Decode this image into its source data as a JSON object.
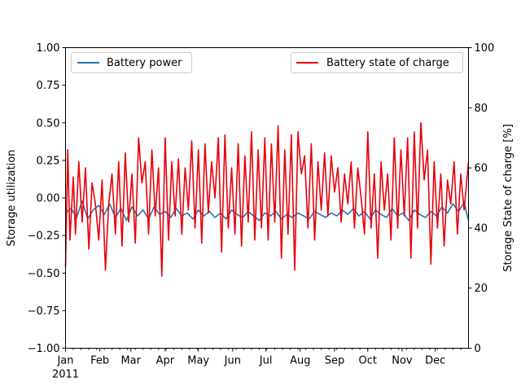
{
  "chart_data": {
    "type": "line",
    "x_axis": {
      "tick_labels": [
        "Jan",
        "Feb",
        "Mar",
        "Apr",
        "May",
        "Jun",
        "Jul",
        "Aug",
        "Sep",
        "Oct",
        "Nov",
        "Dec"
      ],
      "year_label": "2011",
      "range": [
        "2011-01-01",
        "2011-12-31"
      ]
    },
    "y_axis_left": {
      "label": "Storage utilization",
      "ylim": [
        -1.0,
        1.0
      ],
      "ticks": [
        "−1.00",
        "−0.75",
        "−0.50",
        "−0.25",
        "0.00",
        "0.25",
        "0.50",
        "0.75",
        "1.00"
      ]
    },
    "y_axis_right": {
      "label": "Storage State of charge [%]",
      "ylim": [
        0,
        100
      ],
      "ticks": [
        "0",
        "20",
        "40",
        "60",
        "80",
        "100"
      ]
    },
    "grid": false,
    "legend_left": {
      "position": "upper-left",
      "entry": "Battery power",
      "color": "#1f77b4"
    },
    "legend_right": {
      "position": "upper-right",
      "entry": "Battery state of charge",
      "color": "#e8000b"
    },
    "series": [
      {
        "name": "Battery power",
        "axis": "left",
        "color": "#1f77b4",
        "x": [
          "2011-01-01",
          "2011-01-06",
          "2011-01-11",
          "2011-01-16",
          "2011-01-21",
          "2011-01-26",
          "2011-01-31",
          "2011-02-05",
          "2011-02-10",
          "2011-02-15",
          "2011-02-20",
          "2011-02-25",
          "2011-03-02",
          "2011-03-07",
          "2011-03-12",
          "2011-03-17",
          "2011-03-22",
          "2011-03-27",
          "2011-04-01",
          "2011-04-06",
          "2011-04-11",
          "2011-04-16",
          "2011-04-21",
          "2011-04-26",
          "2011-05-01",
          "2011-05-06",
          "2011-05-11",
          "2011-05-16",
          "2011-05-21",
          "2011-05-26",
          "2011-05-31",
          "2011-06-05",
          "2011-06-10",
          "2011-06-15",
          "2011-06-20",
          "2011-06-25",
          "2011-06-30",
          "2011-07-05",
          "2011-07-10",
          "2011-07-15",
          "2011-07-20",
          "2011-07-25",
          "2011-07-30",
          "2011-08-04",
          "2011-08-09",
          "2011-08-14",
          "2011-08-19",
          "2011-08-24",
          "2011-08-29",
          "2011-09-03",
          "2011-09-08",
          "2011-09-13",
          "2011-09-18",
          "2011-09-23",
          "2011-09-28",
          "2011-10-03",
          "2011-10-08",
          "2011-10-13",
          "2011-10-18",
          "2011-10-23",
          "2011-10-28",
          "2011-11-02",
          "2011-11-07",
          "2011-11-12",
          "2011-11-17",
          "2011-11-22",
          "2011-11-27",
          "2011-12-02",
          "2011-12-07",
          "2011-12-12",
          "2011-12-17",
          "2011-12-22",
          "2011-12-27",
          "2011-12-31"
        ],
        "values": [
          -0.1,
          -0.07,
          -0.13,
          -0.02,
          -0.14,
          -0.08,
          -0.05,
          -0.11,
          -0.04,
          -0.13,
          -0.07,
          -0.15,
          -0.06,
          -0.12,
          -0.08,
          -0.14,
          -0.06,
          -0.11,
          -0.09,
          -0.13,
          -0.07,
          -0.12,
          -0.1,
          -0.14,
          -0.08,
          -0.12,
          -0.09,
          -0.13,
          -0.1,
          -0.14,
          -0.08,
          -0.11,
          -0.13,
          -0.09,
          -0.12,
          -0.15,
          -0.1,
          -0.12,
          -0.09,
          -0.14,
          -0.11,
          -0.13,
          -0.1,
          -0.12,
          -0.14,
          -0.09,
          -0.11,
          -0.13,
          -0.1,
          -0.12,
          -0.08,
          -0.11,
          -0.07,
          -0.12,
          -0.09,
          -0.14,
          -0.08,
          -0.11,
          -0.13,
          -0.07,
          -0.12,
          -0.1,
          -0.15,
          -0.08,
          -0.11,
          -0.13,
          -0.09,
          -0.12,
          -0.06,
          -0.1,
          -0.04,
          -0.09,
          -0.03,
          -0.15
        ]
      },
      {
        "name": "Battery state of charge",
        "axis": "right",
        "color": "#e8000b",
        "x": [
          "2011-01-01",
          "2011-01-03",
          "2011-01-05",
          "2011-01-08",
          "2011-01-10",
          "2011-01-13",
          "2011-01-16",
          "2011-01-19",
          "2011-01-22",
          "2011-01-25",
          "2011-01-28",
          "2011-01-31",
          "2011-02-03",
          "2011-02-06",
          "2011-02-09",
          "2011-02-12",
          "2011-02-15",
          "2011-02-18",
          "2011-02-21",
          "2011-02-24",
          "2011-02-27",
          "2011-03-02",
          "2011-03-05",
          "2011-03-08",
          "2011-03-11",
          "2011-03-14",
          "2011-03-17",
          "2011-03-20",
          "2011-03-23",
          "2011-03-26",
          "2011-03-29",
          "2011-04-01",
          "2011-04-04",
          "2011-04-07",
          "2011-04-10",
          "2011-04-13",
          "2011-04-16",
          "2011-04-19",
          "2011-04-22",
          "2011-04-25",
          "2011-04-28",
          "2011-05-01",
          "2011-05-04",
          "2011-05-07",
          "2011-05-10",
          "2011-05-13",
          "2011-05-16",
          "2011-05-19",
          "2011-05-22",
          "2011-05-25",
          "2011-05-28",
          "2011-05-31",
          "2011-06-03",
          "2011-06-06",
          "2011-06-09",
          "2011-06-12",
          "2011-06-15",
          "2011-06-18",
          "2011-06-21",
          "2011-06-24",
          "2011-06-27",
          "2011-06-30",
          "2011-07-03",
          "2011-07-06",
          "2011-07-09",
          "2011-07-12",
          "2011-07-15",
          "2011-07-18",
          "2011-07-21",
          "2011-07-24",
          "2011-07-27",
          "2011-07-30",
          "2011-08-02",
          "2011-08-05",
          "2011-08-08",
          "2011-08-11",
          "2011-08-14",
          "2011-08-17",
          "2011-08-20",
          "2011-08-23",
          "2011-08-26",
          "2011-08-29",
          "2011-09-01",
          "2011-09-04",
          "2011-09-07",
          "2011-09-10",
          "2011-09-13",
          "2011-09-16",
          "2011-09-19",
          "2011-09-22",
          "2011-09-25",
          "2011-09-28",
          "2011-10-01",
          "2011-10-04",
          "2011-10-07",
          "2011-10-10",
          "2011-10-13",
          "2011-10-16",
          "2011-10-19",
          "2011-10-22",
          "2011-10-25",
          "2011-10-28",
          "2011-10-31",
          "2011-11-03",
          "2011-11-06",
          "2011-11-09",
          "2011-11-12",
          "2011-11-15",
          "2011-11-18",
          "2011-11-21",
          "2011-11-24",
          "2011-11-27",
          "2011-11-30",
          "2011-12-03",
          "2011-12-06",
          "2011-12-09",
          "2011-12-12",
          "2011-12-15",
          "2011-12-18",
          "2011-12-21",
          "2011-12-24",
          "2011-12-27",
          "2011-12-31"
        ],
        "values": [
          27,
          66,
          36,
          57,
          38,
          62,
          42,
          60,
          33,
          55,
          48,
          36,
          56,
          26,
          48,
          58,
          38,
          62,
          34,
          65,
          42,
          58,
          35,
          70,
          55,
          62,
          38,
          66,
          44,
          60,
          24,
          70,
          36,
          62,
          44,
          63,
          38,
          60,
          46,
          69,
          40,
          66,
          35,
          68,
          45,
          62,
          50,
          70,
          32,
          71,
          40,
          60,
          38,
          68,
          34,
          64,
          42,
          72,
          36,
          66,
          40,
          70,
          36,
          68,
          42,
          74,
          30,
          66,
          38,
          71,
          26,
          72,
          58,
          64,
          40,
          68,
          36,
          62,
          46,
          65,
          44,
          64,
          52,
          60,
          42,
          58,
          48,
          62,
          40,
          60,
          50,
          38,
          72,
          40,
          58,
          30,
          62,
          46,
          58,
          36,
          70,
          40,
          66,
          44,
          70,
          30,
          72,
          40,
          75,
          56,
          66,
          28,
          62,
          40,
          58,
          34,
          56,
          48,
          62,
          38,
          58,
          46,
          62
        ]
      }
    ]
  }
}
